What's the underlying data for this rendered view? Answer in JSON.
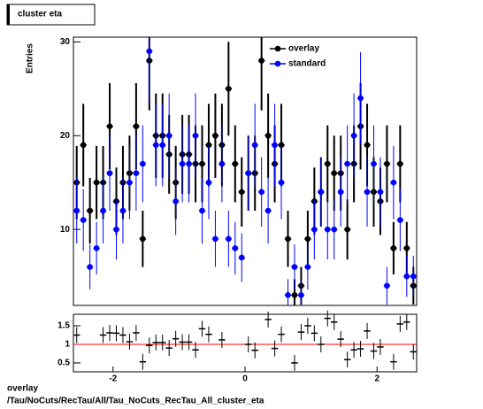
{
  "chart_data": [
    {
      "type": "errorbar",
      "title": "cluster eta",
      "ylabel": "Entries",
      "x": [
        -2.55,
        -2.45,
        -2.35,
        -2.25,
        -2.15,
        -2.05,
        -1.95,
        -1.85,
        -1.75,
        -1.65,
        -1.55,
        -1.45,
        -1.35,
        -1.25,
        -1.15,
        -1.05,
        -0.95,
        -0.85,
        -0.75,
        -0.65,
        -0.55,
        -0.45,
        -0.35,
        -0.25,
        -0.15,
        -0.05,
        0.05,
        0.15,
        0.25,
        0.35,
        0.45,
        0.55,
        0.65,
        0.75,
        0.85,
        0.95,
        1.05,
        1.15,
        1.25,
        1.35,
        1.45,
        1.55,
        1.65,
        1.75,
        1.85,
        1.95,
        2.05,
        2.15,
        2.25,
        2.35,
        2.45,
        2.55
      ],
      "series": [
        {
          "name": "overlay",
          "color": "#000000",
          "values": [
            15,
            19,
            12,
            15,
            15,
            21,
            13,
            15,
            16,
            21,
            9,
            28,
            20,
            20,
            18,
            15,
            18,
            18,
            17,
            17,
            19,
            20,
            19,
            25,
            17,
            14,
            16,
            16,
            28,
            20,
            17,
            19,
            9,
            3,
            4,
            9,
            13,
            14,
            17,
            16,
            16,
            10,
            17,
            21,
            19,
            14,
            13,
            17,
            8,
            17,
            8,
            4
          ],
          "errors": [
            3.9,
            4.4,
            3.5,
            3.9,
            3.9,
            4.6,
            3.6,
            3.9,
            4,
            4.6,
            3,
            5.3,
            4.5,
            4.5,
            4.2,
            3.9,
            4.2,
            4.2,
            4.1,
            4.1,
            4.4,
            4.5,
            4.4,
            5,
            4.1,
            3.7,
            4,
            4,
            5.3,
            4.5,
            4.1,
            4.4,
            3,
            1.7,
            2,
            3,
            3.6,
            3.7,
            4.1,
            4,
            4,
            3.2,
            4.1,
            4.6,
            4.4,
            3.7,
            3.6,
            4.1,
            2.8,
            4.1,
            2.8,
            2
          ]
        },
        {
          "name": "standard",
          "color": "#0000ff",
          "values": [
            12,
            11,
            6,
            8,
            12,
            16,
            10,
            12,
            15,
            16,
            17,
            29,
            19,
            19,
            20,
            13,
            17,
            17,
            20,
            12,
            15,
            9,
            17,
            9,
            8,
            7,
            16,
            19,
            14,
            12,
            19,
            15,
            3,
            6,
            3,
            6,
            10,
            14,
            10,
            10,
            14,
            17,
            20,
            24,
            14,
            17,
            14,
            4,
            15,
            11,
            5,
            5
          ],
          "errors": [
            3.5,
            3.3,
            2.4,
            2.8,
            3.5,
            4,
            3.2,
            3.5,
            3.9,
            4,
            4.1,
            5.4,
            4.4,
            4.4,
            4.5,
            3.6,
            4.1,
            4.1,
            4.5,
            3.5,
            3.9,
            3,
            4.1,
            3,
            2.8,
            2.6,
            4,
            4.4,
            3.7,
            3.5,
            4.4,
            3.9,
            1.7,
            2.4,
            1.7,
            2.4,
            3.2,
            3.7,
            3.2,
            3.2,
            3.7,
            4.1,
            4.5,
            4.9,
            3.7,
            4.1,
            3.7,
            2,
            3.9,
            3.3,
            2.2,
            2.2
          ]
        }
      ],
      "xlim": [
        -2.6,
        2.6
      ],
      "ylim": [
        1.9,
        30.5
      ],
      "yticks": [
        10,
        20,
        30
      ],
      "legend": "upper-right"
    },
    {
      "type": "ratio",
      "x": [
        -2.55,
        -2.45,
        -2.35,
        -2.25,
        -2.15,
        -2.05,
        -1.95,
        -1.85,
        -1.75,
        -1.65,
        -1.55,
        -1.45,
        -1.35,
        -1.25,
        -1.15,
        -1.05,
        -0.95,
        -0.85,
        -0.75,
        -0.65,
        -0.55,
        -0.45,
        -0.35,
        -0.25,
        -0.15,
        -0.05,
        0.05,
        0.15,
        0.25,
        0.35,
        0.45,
        0.55,
        0.65,
        0.75,
        0.85,
        0.95,
        1.05,
        1.15,
        1.25,
        1.35,
        1.45,
        1.55,
        1.65,
        1.75,
        1.85,
        1.95,
        2.05,
        2.15,
        2.25,
        2.35,
        2.45,
        2.55
      ],
      "values": [
        1.25,
        null,
        null,
        null,
        1.25,
        1.31,
        1.3,
        1.25,
        1.07,
        1.31,
        0.53,
        0.97,
        1.05,
        1.05,
        0.9,
        1.15,
        1.06,
        1.06,
        0.85,
        1.42,
        1.27,
        null,
        1.12,
        null,
        null,
        null,
        1.0,
        0.84,
        null,
        1.67,
        0.89,
        1.27,
        null,
        0.5,
        1.33,
        1.5,
        1.3,
        1.0,
        1.7,
        1.6,
        1.14,
        0.59,
        0.85,
        0.88,
        1.36,
        0.82,
        0.93,
        null,
        0.53,
        1.55,
        1.6,
        0.8
      ],
      "reference": 1,
      "reference_color": "#ff0000",
      "xlim": [
        -2.6,
        2.6
      ],
      "ylim": [
        0.26,
        1.81
      ],
      "xticks": [
        -2,
        0,
        2
      ],
      "yticks": [
        0.5,
        1,
        1.5
      ]
    }
  ],
  "footer": {
    "line1": "overlay",
    "line2": "/Tau/NoCuts/RecTau/All/Tau_NoCuts_RecTau_All_cluster_eta"
  }
}
